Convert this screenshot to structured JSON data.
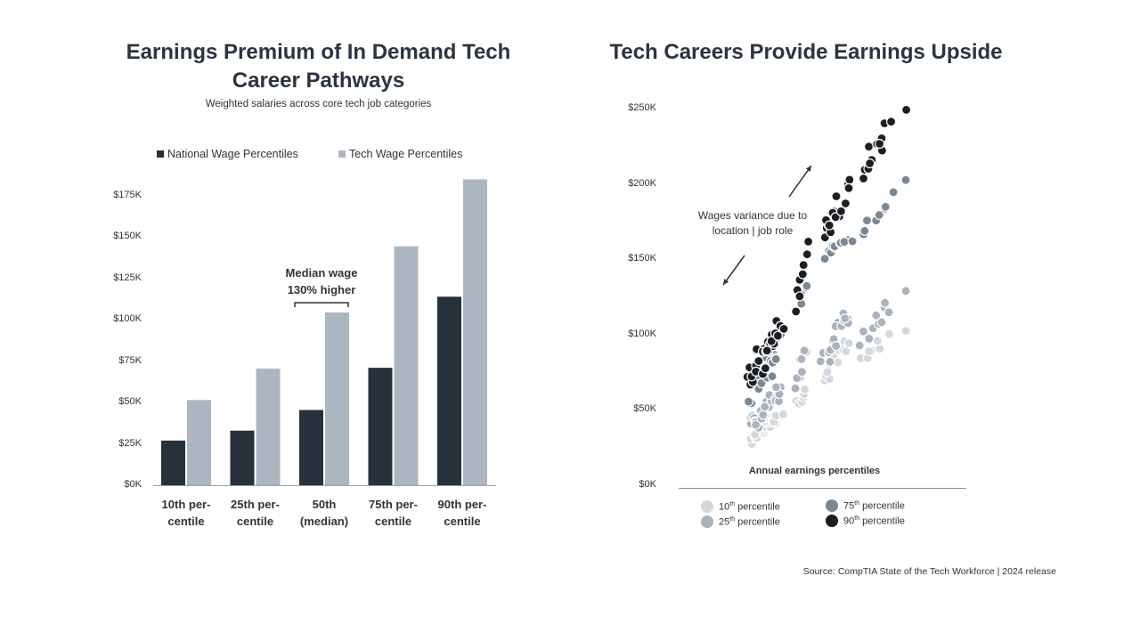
{
  "left_chart": {
    "title": "Earnings Premium of In Demand Tech Career Pathways",
    "subtitle": "Weighted salaries across core tech job categories",
    "annotation": "Median wage\n130% higher"
  },
  "right_chart": {
    "title": "Tech Careers Provide Earnings Upside",
    "annotation": "Wages variance due to\nlocation | job role",
    "xlabel": "Annual earnings percentiles",
    "legend": [
      {
        "pct": "10",
        "suffix": "th",
        "label": " percentile",
        "color": "#d3d8dd"
      },
      {
        "pct": "25",
        "suffix": "th",
        "label": " percentile",
        "color": "#a9b3bd"
      },
      {
        "pct": "75",
        "suffix": "th",
        "label": " percentile",
        "color": "#7a8896"
      },
      {
        "pct": "90",
        "suffix": "th",
        "label": " percentile",
        "color": "#1b1f24"
      }
    ]
  },
  "source": "Source: CompTIA State of the Tech Workforce | 2024 release",
  "colors": {
    "national": "#27313b",
    "tech": "#abb6c0"
  },
  "chart_data": [
    {
      "type": "bar",
      "title": "Earnings Premium of In Demand Tech Career Pathways",
      "subtitle": "Weighted salaries across core tech job categories",
      "categories": [
        "10th per-\ncentile",
        "25th per-\ncentile",
        "50th\n(median)",
        "75th per-\ncentile",
        "90th per-\ncentile"
      ],
      "series": [
        {
          "name": "National Wage Percentiles",
          "values": [
            27000,
            33000,
            45500,
            71000,
            114000
          ]
        },
        {
          "name": "Tech Wage Percentiles",
          "values": [
            51500,
            70500,
            104500,
            144500,
            185000
          ]
        }
      ],
      "ylim": [
        0,
        185000
      ],
      "yticks": [
        "$0K",
        "$25K",
        "$50K",
        "$75K",
        "$100K",
        "$125K",
        "$150K",
        "$175K"
      ],
      "legend": "top",
      "grid": false
    },
    {
      "type": "scatter",
      "title": "Tech Careers Provide Earnings Upside",
      "xlabel": "Annual earnings percentiles",
      "ylim": [
        0,
        250000
      ],
      "yticks": [
        "$0K",
        "$50K",
        "$100K",
        "$150K",
        "$200K",
        "$250K"
      ],
      "legend": "bottom",
      "grid": false,
      "clusters": [
        {
          "x_range": [
            0.0,
            0.19
          ],
          "p10": [
            27000,
            50000
          ],
          "p25": [
            33000,
            68000
          ],
          "p75": [
            52000,
            103000
          ],
          "p90": [
            62000,
            112000
          ]
        },
        {
          "x_range": [
            0.25,
            0.31
          ],
          "p10": [
            50000,
            66000
          ],
          "p25": [
            60000,
            96000
          ],
          "p75": [
            117000,
            138000
          ],
          "p90": [
            105000,
            172000
          ]
        },
        {
          "x_range": [
            0.38,
            0.53
          ],
          "p10": [
            64000,
            102000
          ],
          "p25": [
            78000,
            125000
          ],
          "p75": [
            150000,
            165000
          ],
          "p90": [
            155000,
            207000
          ]
        },
        {
          "x_range": [
            0.56,
            0.74
          ],
          "p10": [
            82000,
            102000
          ],
          "p25": [
            92000,
            126000
          ],
          "p75": [
            157000,
            204000
          ],
          "p90": [
            198000,
            250000
          ]
        },
        {
          "x_range": [
            0.8,
            0.81
          ],
          "p10": [
            101000,
            101000
          ],
          "p25": [
            130000,
            130000
          ],
          "p75": [
            204000,
            204000
          ],
          "p90": [
            249000,
            249000
          ]
        }
      ]
    }
  ]
}
